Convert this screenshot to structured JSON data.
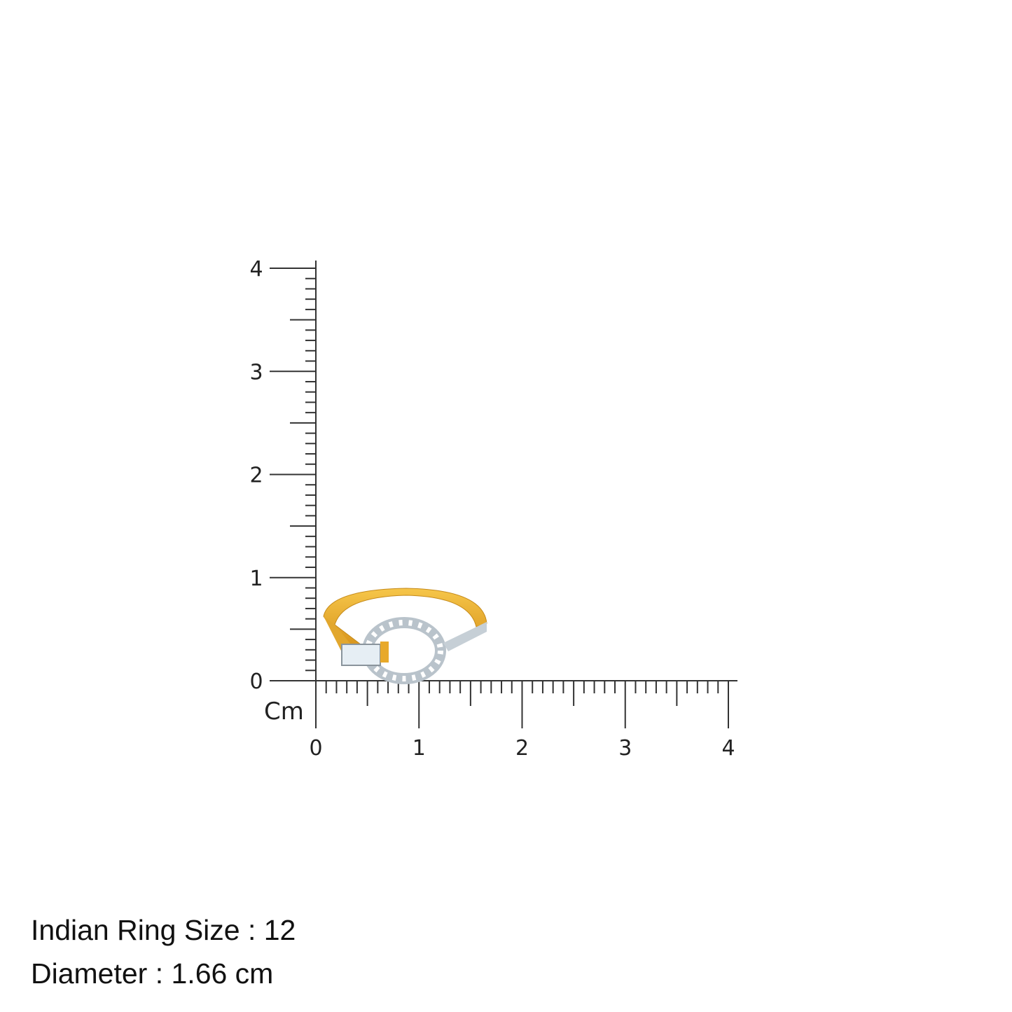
{
  "ruler": {
    "unit_label": "Cm",
    "x_ticks": [
      "0",
      "1",
      "2",
      "3",
      "4"
    ],
    "y_ticks": [
      "0",
      "1",
      "2",
      "3",
      "4"
    ]
  },
  "product": {
    "image": "gold-diamond-ring-icon",
    "metal_color": "#e8a92a",
    "stone_color": "#e6eef4"
  },
  "info": {
    "ring_size": "Indian Ring Size : 12",
    "diameter": "Diameter : 1.66 cm"
  }
}
